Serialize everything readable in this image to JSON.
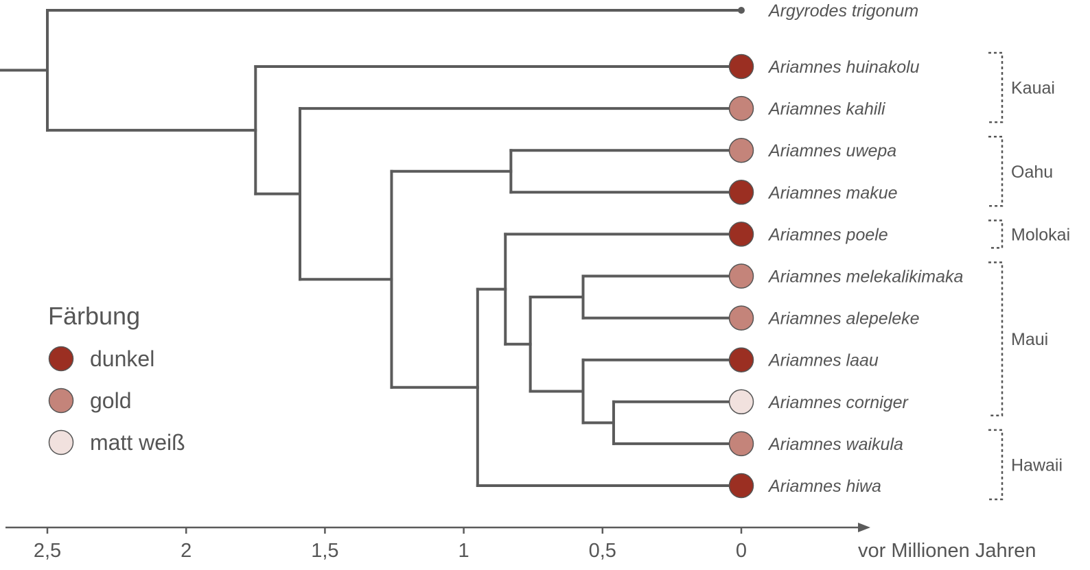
{
  "axis": {
    "label": "vor Millionen Jahren",
    "ticks": [
      {
        "value": 2.5,
        "label": "2,5"
      },
      {
        "value": 2,
        "label": "2"
      },
      {
        "value": 1.5,
        "label": "1,5"
      },
      {
        "value": 1,
        "label": "1"
      },
      {
        "value": 0.5,
        "label": "0,5"
      },
      {
        "value": 0,
        "label": "0"
      }
    ]
  },
  "legend": {
    "title": "Färbung",
    "items": [
      {
        "key": "dunkel",
        "label": "dunkel",
        "color": "#9b2f22"
      },
      {
        "key": "gold",
        "label": "gold",
        "color": "#c4847a"
      },
      {
        "key": "matt",
        "label": "matt weiß",
        "color": "#f1e1de"
      }
    ]
  },
  "species": [
    {
      "name": "Argyrodes trigonum",
      "color": "outgroup"
    },
    {
      "name": "Ariamnes huinakolu",
      "color": "dunkel"
    },
    {
      "name": "Ariamnes kahili",
      "color": "gold"
    },
    {
      "name": "Ariamnes uwepa",
      "color": "gold"
    },
    {
      "name": "Ariamnes makue",
      "color": "dunkel"
    },
    {
      "name": "Ariamnes poele",
      "color": "dunkel"
    },
    {
      "name": "Ariamnes melekalikimaka",
      "color": "gold"
    },
    {
      "name": "Ariamnes alepeleke",
      "color": "gold"
    },
    {
      "name": "Ariamnes laau",
      "color": "dunkel"
    },
    {
      "name": "Ariamnes corniger",
      "color": "matt"
    },
    {
      "name": "Ariamnes waikula",
      "color": "gold"
    },
    {
      "name": "Ariamnes hiwa",
      "color": "dunkel"
    }
  ],
  "nodes": [
    {
      "id": "root",
      "age": 2.5
    },
    {
      "id": "ariamnes",
      "age": 1.75
    },
    {
      "id": "n_kahili",
      "age": 1.59
    },
    {
      "id": "n_big",
      "age": 1.26
    },
    {
      "id": "n_oahu",
      "age": 0.83
    },
    {
      "id": "n_hawaii",
      "age": 0.95
    },
    {
      "id": "n_poele",
      "age": 0.85
    },
    {
      "id": "n_maui",
      "age": 0.76
    },
    {
      "id": "n_mele",
      "age": 0.57
    },
    {
      "id": "n_laau",
      "age": 0.57
    },
    {
      "id": "n_cor",
      "age": 0.46
    }
  ],
  "islands": [
    {
      "name": "Kauai",
      "from": 1,
      "to": 2
    },
    {
      "name": "Oahu",
      "from": 3,
      "to": 4
    },
    {
      "name": "Molokai",
      "from": 5,
      "to": 5
    },
    {
      "name": "Maui",
      "from": 6,
      "to": 9
    },
    {
      "name": "Hawaii",
      "from": 10,
      "to": 11
    }
  ]
}
